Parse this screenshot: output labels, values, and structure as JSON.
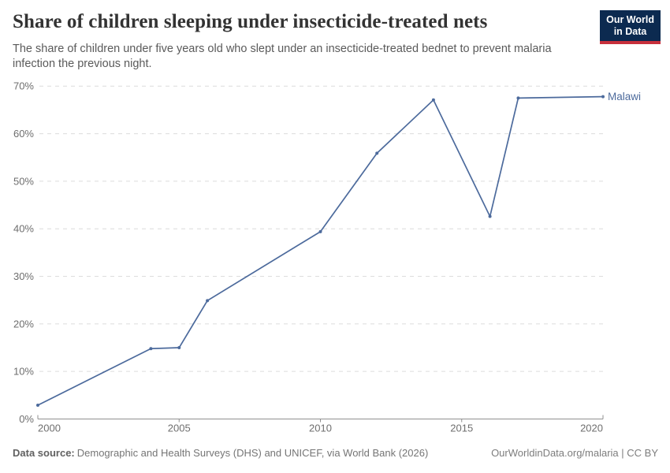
{
  "header": {
    "title": "Share of children sleeping under insecticide-treated nets",
    "subtitle_lines": [
      "The share of children under five years old who slept under an insecticide-treated bednet to prevent malaria",
      "infection the previous night."
    ],
    "logo": {
      "line1": "Our World",
      "line2": "in Data",
      "bg_color": "#0C2A50",
      "accent_color": "#C7303C",
      "text_color": "#ffffff"
    }
  },
  "chart_data": {
    "type": "line",
    "title": "Share of children sleeping under insecticide-treated nets",
    "x": [
      2000,
      2004,
      2005,
      2006,
      2010,
      2012,
      2014,
      2016,
      2017,
      2020
    ],
    "series": [
      {
        "name": "Malawi",
        "color": "#4C6A9C",
        "values": [
          2.9,
          14.8,
          15,
          24.9,
          39.4,
          55.9,
          67.1,
          42.6,
          67.5,
          67.8
        ]
      }
    ],
    "xlabel": "",
    "ylabel": "",
    "xlim": [
      2000,
      2020
    ],
    "ylim": [
      0,
      70
    ],
    "x_ticks": [
      2000,
      2005,
      2010,
      2015,
      2020
    ],
    "x_tick_labels": [
      "2000",
      "2005",
      "2010",
      "2015",
      "2020"
    ],
    "y_ticks": [
      0,
      10,
      20,
      30,
      40,
      50,
      60,
      70
    ],
    "y_tick_labels": [
      "0%",
      "10%",
      "20%",
      "30%",
      "40%",
      "50%",
      "60%",
      "70%"
    ],
    "grid": "horizontal-dashed",
    "legend_position": "line-end-label"
  },
  "footer": {
    "source_label": "Data source:",
    "source_text": "Demographic and Health Surveys (DHS) and UNICEF, via World Bank (2026)",
    "attribution": "OurWorldinData.org/malaria | CC BY"
  },
  "colors": {
    "line": "#4C6A9C",
    "entity_label": "#4C6A9C",
    "gridline": "#dcdcdc",
    "axis": "#8f8f8f",
    "tick_label": "#6e6e6e",
    "title": "#333333",
    "subtitle": "#5a5a5a",
    "footer_text": "#757575"
  }
}
